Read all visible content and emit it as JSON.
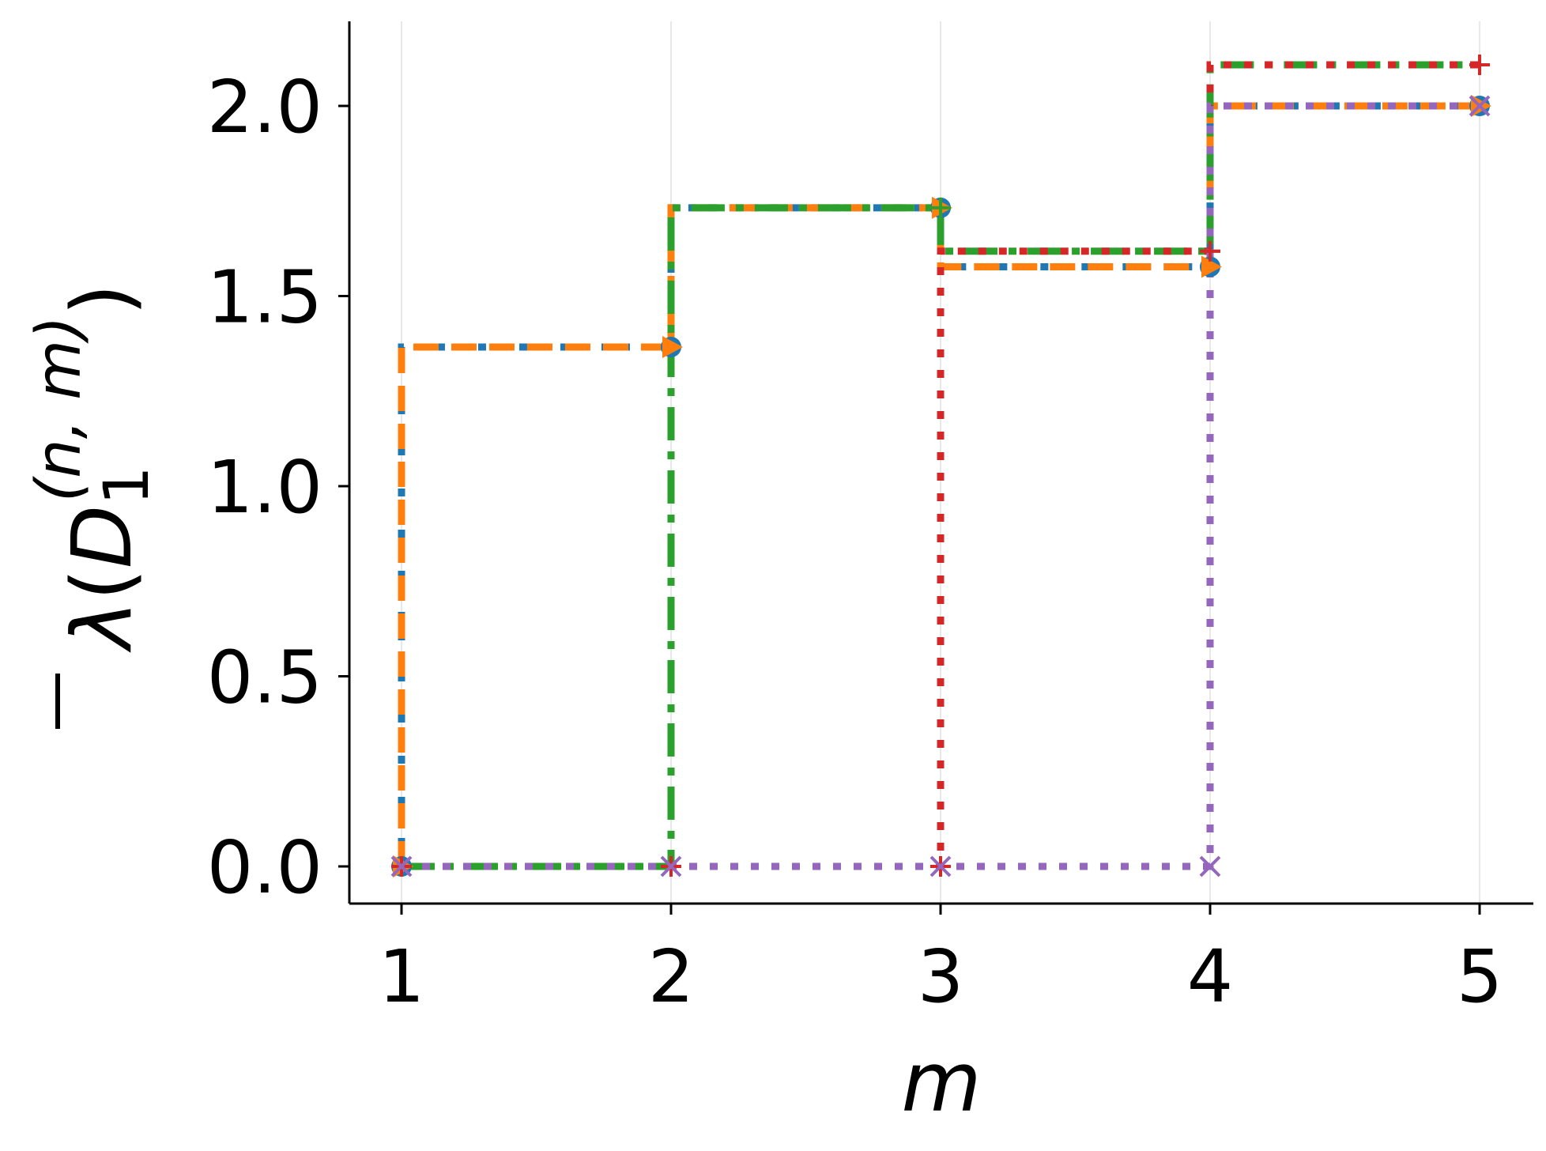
{
  "chart_data": {
    "type": "line",
    "step": "pre",
    "xlabel": "m",
    "ylabel": "λ̄(D1(n,m))",
    "ylabel_parts": {
      "bar": "‾",
      "lambda": "λ",
      "open": "(",
      "D": "D",
      "sub": "1",
      "sup": "(n, m)",
      "close": ")"
    },
    "x_ticks": [
      1,
      2,
      3,
      4,
      5
    ],
    "y_ticks": [
      0.0,
      0.5,
      1.0,
      1.5,
      2.0
    ],
    "x_tick_labels": [
      "1",
      "2",
      "3",
      "4",
      "5"
    ],
    "y_tick_labels": [
      "0.0",
      "0.5",
      "1.0",
      "1.5",
      "2.0"
    ],
    "xlim": [
      0.8,
      5.2
    ],
    "ylim": [
      -0.1,
      2.22
    ],
    "grid": "x-only, light",
    "legend": "none",
    "series": [
      {
        "x": [
          1,
          2,
          3,
          4,
          5
        ],
        "y": [
          0.0,
          1.366,
          1.732,
          1.577,
          2.0
        ],
        "color": "#1f77b4",
        "dash": "dotted",
        "marker": "circle"
      },
      {
        "x": [
          1,
          2,
          3,
          4,
          5
        ],
        "y": [
          0.0,
          1.366,
          1.732,
          1.577,
          2.0
        ],
        "color": "#ff7f0e",
        "dash": "dashed",
        "marker": "triangle-right"
      },
      {
        "x": [
          1,
          2,
          3,
          4,
          5
        ],
        "y": [
          0.0,
          0.0,
          1.732,
          1.618,
          2.108
        ],
        "color": "#2ca02c",
        "dash": "dashdot",
        "marker": "plus"
      },
      {
        "x": [
          1,
          2,
          3,
          4,
          5
        ],
        "y": [
          0.0,
          0.0,
          0.0,
          1.618,
          2.108
        ],
        "color": "#d62728",
        "dash": "dotted",
        "marker": "plus"
      },
      {
        "x": [
          1,
          2,
          3,
          4,
          5
        ],
        "y": [
          0.0,
          0.0,
          0.0,
          0.0,
          2.0
        ],
        "color": "#9467bd",
        "dash": "dotted",
        "marker": "x"
      }
    ]
  }
}
